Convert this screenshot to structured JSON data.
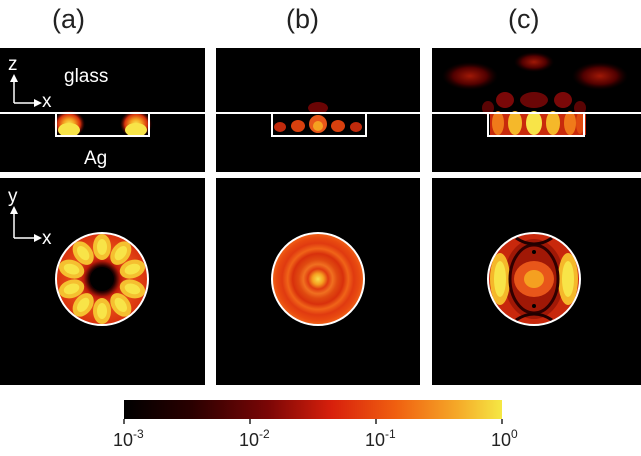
{
  "panel_labels": [
    "(a)",
    "(b)",
    "(c)"
  ],
  "annotations": {
    "axis_z": "z",
    "axis_x": "x",
    "axis_y": "y",
    "material_top": "glass",
    "material_bottom": "Ag"
  },
  "colorbar": {
    "scale": "log",
    "min": 0.001,
    "max": 1,
    "tick_labels": [
      {
        "base": "10",
        "exp": "-3"
      },
      {
        "base": "10",
        "exp": "-2"
      },
      {
        "base": "10",
        "exp": "-1"
      },
      {
        "base": "10",
        "exp": "0"
      }
    ],
    "colors": [
      "#000000",
      "#3a0000",
      "#8a0a0a",
      "#d8200c",
      "#f06010",
      "#f5a020",
      "#f5e040"
    ]
  },
  "colors": {
    "background": "#000000",
    "outline": "#ffffff"
  }
}
